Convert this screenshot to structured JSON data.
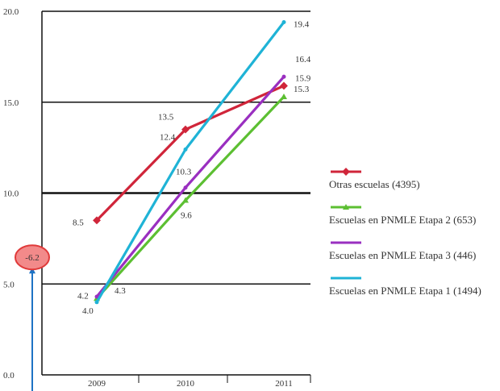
{
  "chart_data": {
    "type": "line",
    "categories": [
      "2009",
      "2010",
      "2011"
    ],
    "ylim": [
      0,
      20
    ],
    "yticks": [
      "0.0",
      "5.0",
      "10.0",
      "15.0",
      "20.0"
    ],
    "series": [
      {
        "name": "Otras escuelas (4395)",
        "color": "#d0253a",
        "marker": "diamond",
        "values": [
          8.5,
          13.5,
          15.9
        ],
        "labels": [
          "8.5",
          "13.5",
          "15.9"
        ]
      },
      {
        "name": "Escuelas en PNMLE Etapa 2 (653)",
        "color": "#5cbf32",
        "marker": "triangle",
        "values": [
          4.2,
          9.6,
          15.3
        ],
        "labels": [
          "4.2",
          "9.6",
          "15.3"
        ]
      },
      {
        "name": "Escuelas en PNMLE Etapa 3 (446)",
        "color": "#9a2fc0",
        "marker": "x",
        "values": [
          4.3,
          10.3,
          16.4
        ],
        "labels": [
          "4.3",
          "10.3",
          "16.4"
        ]
      },
      {
        "name": "Escuelas en PNMLE Etapa 1 (1494)",
        "color": "#1fb3d6",
        "marker": "x",
        "values": [
          4.0,
          12.4,
          19.4
        ],
        "labels": [
          "4.0",
          "12.4",
          "19.4"
        ]
      }
    ],
    "annotation": {
      "text": "-6.2",
      "value": 6.2,
      "color": "#e03a3a",
      "arrow_color": "#1e73c4"
    }
  }
}
